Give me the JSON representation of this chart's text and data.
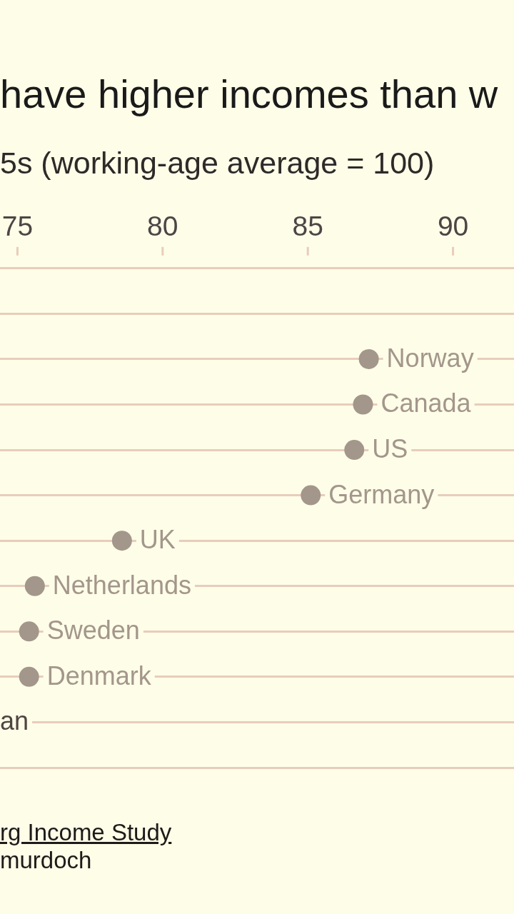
{
  "chart_data": {
    "type": "scatter",
    "orientation": "horizontal",
    "title": "have higher incomes than w",
    "subtitle": "5s (working-age average = 100)",
    "categories": [
      null,
      null,
      "Norway",
      "Canada",
      "US",
      "Germany",
      "UK",
      "Netherlands",
      "Sweden",
      "Denmark",
      "an",
      null
    ],
    "values": [
      null,
      null,
      87.1,
      86.9,
      86.6,
      85.1,
      78.6,
      75.6,
      75.4,
      75.4,
      null,
      null
    ],
    "colors": [
      "#a3968b",
      "#a3968b",
      "#a3968b",
      "#a3968b",
      "#a3968b",
      "#a3968b",
      "#a3968b",
      "#a3968b",
      "#a3968b",
      "#a3968b",
      "#4e4540",
      "#a3968b"
    ],
    "xlim": [
      74.4,
      92.1
    ],
    "xticks": [
      75,
      80,
      85,
      90
    ],
    "grid": "y",
    "tick_labels": "x",
    "marker": "circle",
    "annotations": [
      "rg Income Study",
      "murdoch"
    ]
  }
}
